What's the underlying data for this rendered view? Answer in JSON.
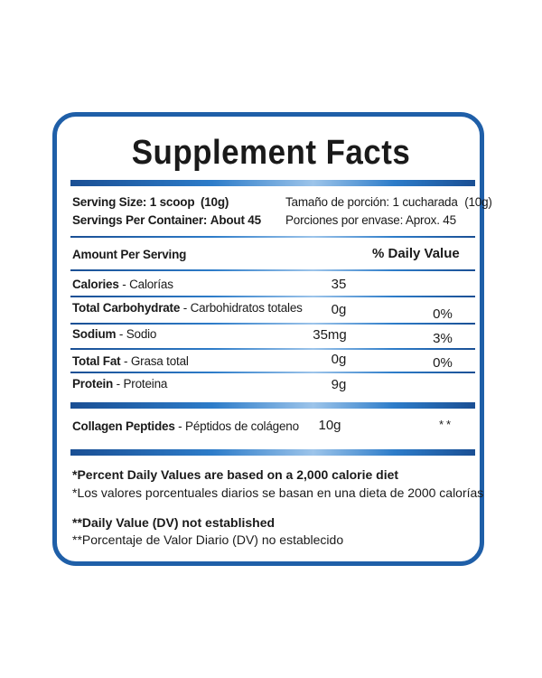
{
  "title": "Supplement Facts",
  "serving": {
    "size_label": "Serving Size:",
    "size_value": "1 scoop",
    "size_grams": "(10g)",
    "per_container_label": "Servings Per Container:",
    "per_container_value": "About 45",
    "size_es": "Tamaño de porción: 1  cucharada",
    "size_es_grams": "(10g)",
    "per_container_es": "Porciones por envase: Aprox. 45"
  },
  "header": {
    "amount": "Amount Per Serving",
    "dv": "% Daily Value"
  },
  "nutrients": [
    {
      "name": "Calories",
      "name_es": " - Calorías",
      "amount": "35",
      "dv": ""
    },
    {
      "name": "Total Carbohydrate",
      "name_es": " - Carbohidratos totales",
      "amount": "0g",
      "dv": "0%"
    },
    {
      "name": "Sodium",
      "name_es": " - Sodio",
      "amount": "35mg",
      "dv": "3%"
    },
    {
      "name": "Total Fat",
      "name_es": " - Grasa total",
      "amount": "0g",
      "dv": "0%"
    },
    {
      "name": "Protein",
      "name_es": " - Proteina",
      "amount": "9g",
      "dv": ""
    }
  ],
  "collagen": {
    "name": "Collagen Peptides",
    "name_es": " - Péptidos de colágeno",
    "amount": "10g",
    "dv": "**"
  },
  "footnotes": {
    "percent_en": "*Percent Daily Values are based on a 2,000 calorie diet",
    "percent_es": "*Los valores porcentuales diarios se basan en una dieta de 2000 calorías",
    "dv_en": "**Daily Value (DV) not established",
    "dv_es": "**Porcentaje de Valor Diario (DV) no establecido"
  },
  "colors": {
    "border": "#1f5fa8",
    "bar_dark": "#1a4f94",
    "bar_light": "#9cc4ea"
  }
}
